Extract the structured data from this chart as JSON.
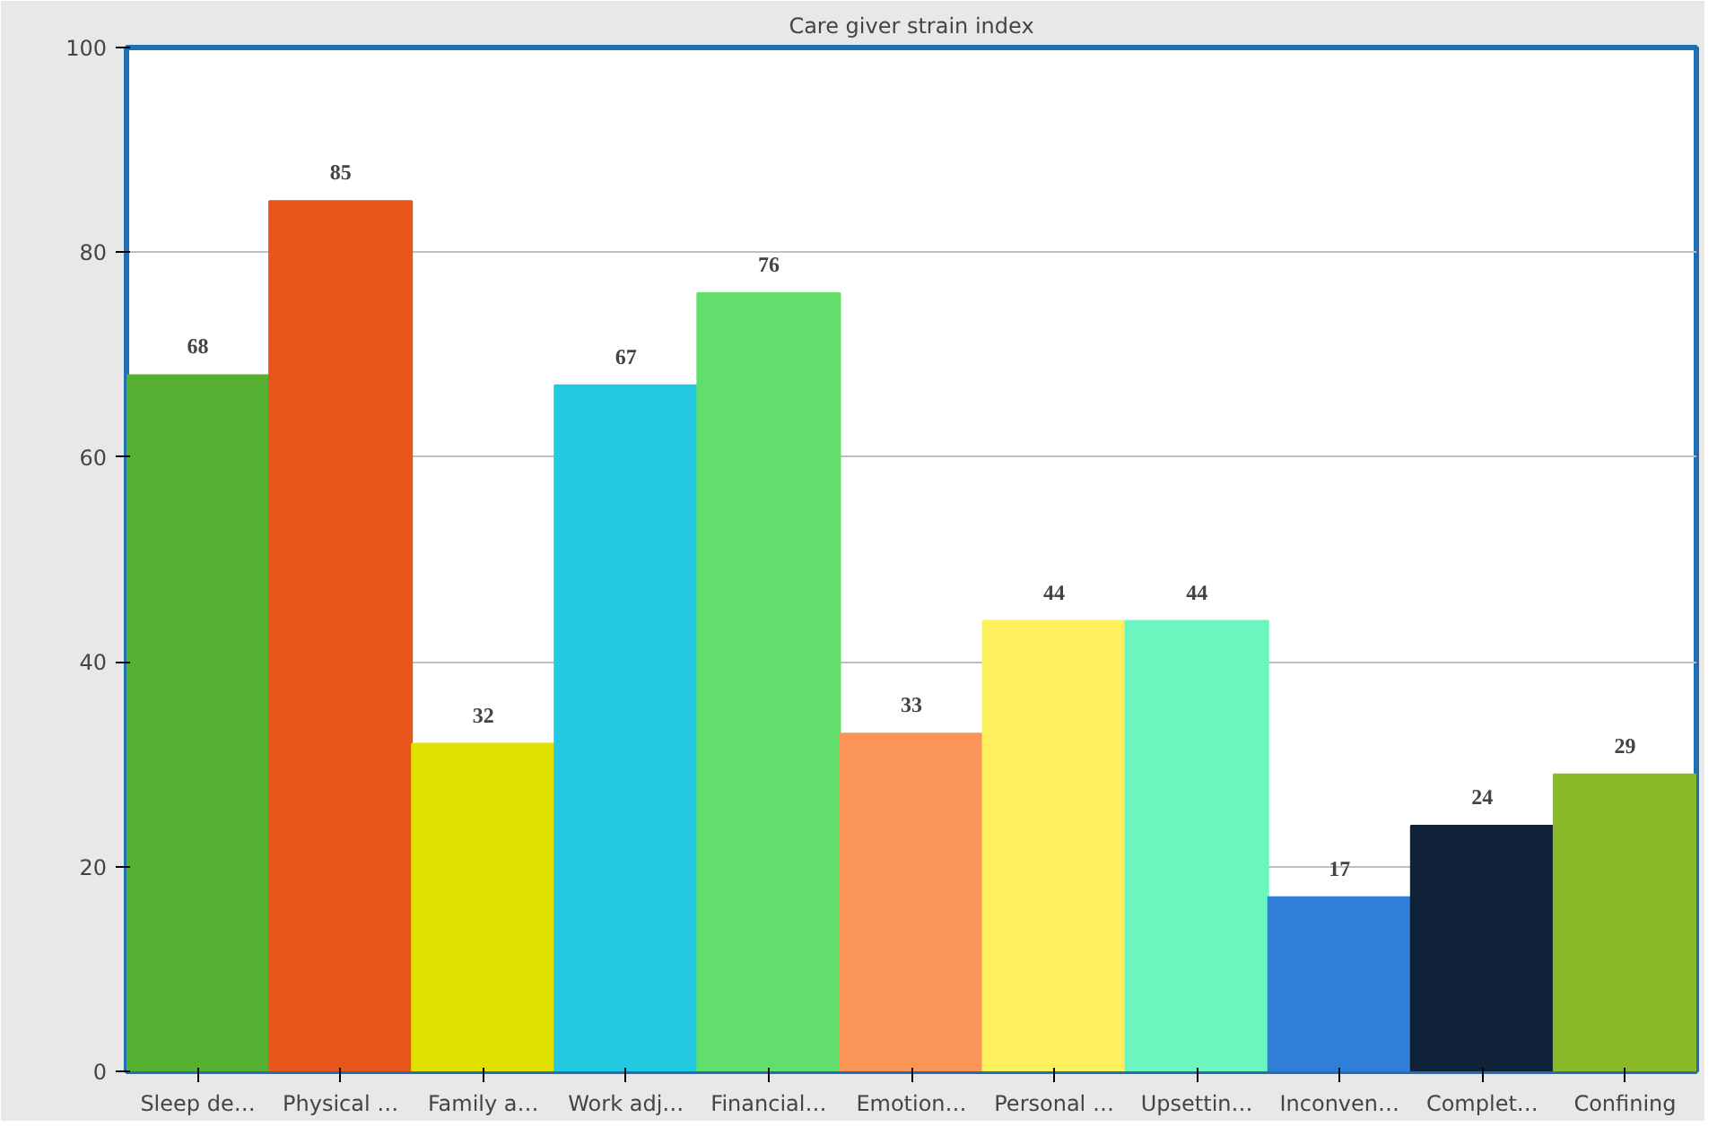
{
  "chart_data": {
    "type": "bar",
    "title": "Care giver strain index",
    "categories": [
      "Sleep de…",
      "Physical …",
      "Family a…",
      "Work adj…",
      "Financial…",
      "Emotion…",
      "Personal …",
      "Upsettin…",
      "Inconven…",
      "Complet…",
      "Confining"
    ],
    "values": [
      68,
      85,
      32,
      67,
      76,
      33,
      44,
      44,
      17,
      24,
      29
    ],
    "colors": [
      "#56b132",
      "#e8561c",
      "#dfe000",
      "#22c9e0",
      "#62de6c",
      "#fa9557",
      "#fff15e",
      "#6df5c0",
      "#2f7ed8",
      "#0f2238",
      "#8ab92a"
    ],
    "ylim": [
      0,
      100
    ],
    "yticks": [
      0,
      20,
      40,
      60,
      80,
      100
    ],
    "grid": "y",
    "data_labels": true
  }
}
